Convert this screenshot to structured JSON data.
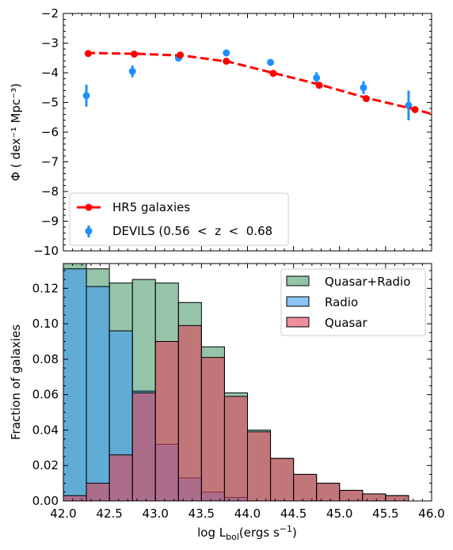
{
  "chart_data": [
    {
      "type": "line",
      "panel": "top",
      "ylabel": "Φ ( dex⁻¹ Mpc⁻³)",
      "xlim": [
        42.0,
        46.0
      ],
      "ylim": [
        -10,
        -2
      ],
      "yticks": [
        -10,
        -9,
        -8,
        -7,
        -6,
        -5,
        -4,
        -3,
        -2
      ],
      "series": [
        {
          "name": "HR5 galaxies",
          "style": "line-markers-dashed",
          "color": "#ff0000",
          "x": [
            42.27,
            42.77,
            43.27,
            43.77,
            44.28,
            44.78,
            45.29,
            45.82
          ],
          "y": [
            -3.35,
            -3.37,
            -3.4,
            -3.61,
            -4.02,
            -4.42,
            -4.87,
            -5.24
          ],
          "trend_x": [
            42.25,
            42.8,
            43.3,
            43.8,
            44.3,
            44.8,
            45.3,
            45.8,
            46.0
          ],
          "trend_y": [
            -3.33,
            -3.36,
            -3.42,
            -3.63,
            -4.02,
            -4.41,
            -4.85,
            -5.22,
            -5.38
          ]
        },
        {
          "name": "DEVILS (0.56  <  z  <  0.68",
          "style": "errorbar",
          "color": "#1e90ff",
          "x": [
            42.25,
            42.75,
            43.25,
            43.77,
            44.25,
            44.75,
            45.26,
            45.75
          ],
          "y": [
            -4.77,
            -3.95,
            -3.5,
            -3.33,
            -3.65,
            -4.17,
            -4.5,
            -5.1
          ],
          "yerr": [
            0.37,
            0.2,
            0.12,
            0.07,
            0.08,
            0.19,
            0.22,
            0.5
          ]
        }
      ],
      "legend": "lower-left"
    },
    {
      "type": "bar",
      "panel": "bottom",
      "xlabel": "log L_bol(ergs s⁻¹)",
      "ylabel": "Fraction of galaxies",
      "xlim": [
        42.0,
        46.0
      ],
      "ylim": [
        0,
        0.134
      ],
      "xticks": [
        "42.0",
        "42.5",
        "43.0",
        "43.5",
        "44.0",
        "44.5",
        "45.0",
        "45.5",
        "46.0"
      ],
      "yticks": [
        "0.00",
        "0.02",
        "0.04",
        "0.06",
        "0.08",
        "0.10",
        "0.12"
      ],
      "bin_edges": [
        42.0,
        42.25,
        42.5,
        42.75,
        43.0,
        43.25,
        43.5,
        43.75,
        44.0,
        44.25,
        44.5,
        44.75,
        45.0,
        45.25,
        45.5,
        45.75
      ],
      "series": [
        {
          "name": "Quasar+Radio",
          "color": "#4f9d70",
          "values": [
            0.134,
            0.131,
            0.123,
            0.125,
            0.123,
            0.112,
            0.087,
            0.061,
            0.04,
            0.024,
            0.015,
            0.01,
            0.006,
            0.004,
            0.003
          ]
        },
        {
          "name": "Radio",
          "color": "#3d9df3",
          "values": [
            0.131,
            0.121,
            0.096,
            0.062,
            0.032,
            0.013,
            0.005,
            0.002,
            0.0,
            0.0,
            0.0,
            0.0,
            0.0,
            0.0,
            0.0
          ]
        },
        {
          "name": "Quasar",
          "color": "#e0425a",
          "values": [
            0.003,
            0.01,
            0.026,
            0.061,
            0.09,
            0.099,
            0.081,
            0.059,
            0.039,
            0.024,
            0.015,
            0.01,
            0.006,
            0.004,
            0.003
          ]
        }
      ],
      "legend": "top-right"
    }
  ]
}
